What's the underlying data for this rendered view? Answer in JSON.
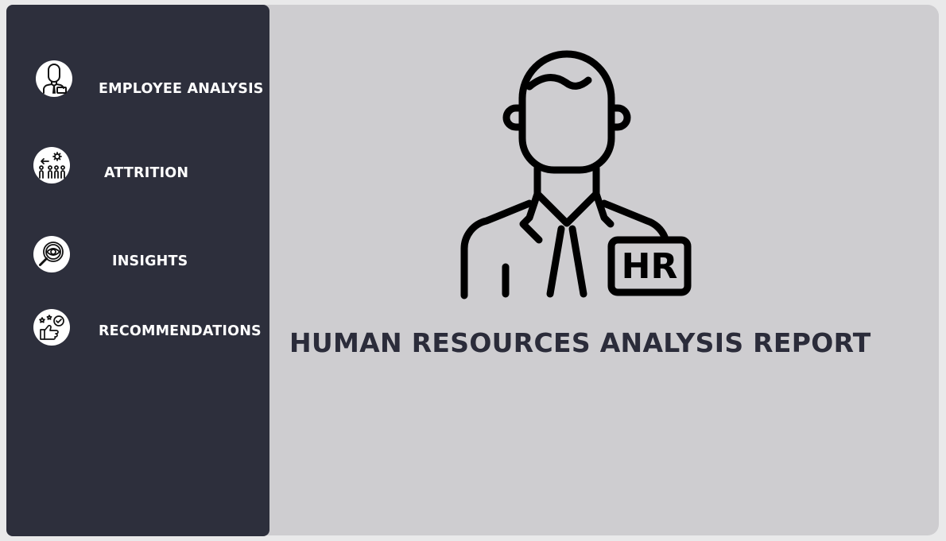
{
  "sidebar": {
    "items": [
      {
        "label": "EMPLOYEE ANALYSIS",
        "icon": "hr-person-icon"
      },
      {
        "label": "ATTRITION",
        "icon": "attrition-people-icon"
      },
      {
        "label": "INSIGHTS",
        "icon": "magnifier-eye-icon"
      },
      {
        "label": "RECOMMENDATIONS",
        "icon": "thumbs-up-stars-icon"
      }
    ]
  },
  "main": {
    "hero_icon": "hr-employee-icon",
    "hero_badge": "HR",
    "title": "HUMAN RESOURCES ANALYSIS REPORT"
  },
  "colors": {
    "sidebar_bg": "#2d2f3c",
    "main_bg": "#cecdd0",
    "title_text": "#2b2c3a",
    "nav_text": "#ffffff"
  }
}
